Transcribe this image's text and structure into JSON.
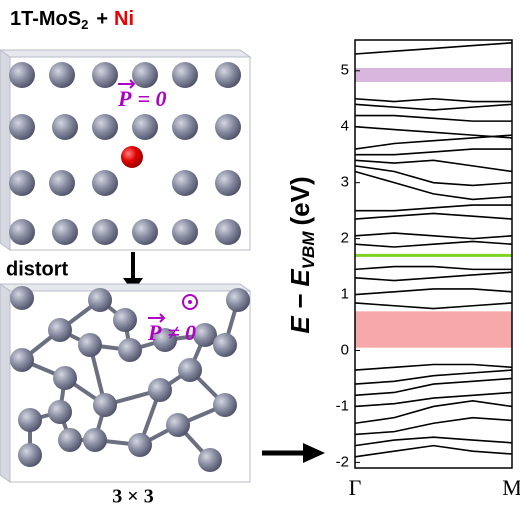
{
  "header": {
    "main": "1T-MoS",
    "sub": "2",
    "plus": "+",
    "element": "Ni"
  },
  "panels": {
    "top_symbol": "P",
    "top_relation": "= 0",
    "arrow_label": "distort",
    "bottom_symbol": "P",
    "bottom_relation": "≠ 0",
    "bottom_caption": "3 × 3"
  },
  "chart_data": {
    "type": "line",
    "ylabel": {
      "main": "E − E",
      "sub": "VBM",
      "unit": "(eV)"
    },
    "x": [
      0,
      0.25,
      0.5,
      0.75,
      1
    ],
    "xlim": [
      0,
      1
    ],
    "xticks": [
      {
        "value": 0,
        "label": "Γ"
      },
      {
        "value": 1,
        "label": "M"
      }
    ],
    "ylim": [
      -2.1,
      5.55
    ],
    "yticks": [
      -2,
      -1,
      0,
      1,
      2,
      3,
      4,
      5
    ],
    "spans": [
      {
        "values": [
          4.8,
          5.05
        ],
        "color": "#d9b6dd"
      },
      {
        "values": [
          0.05,
          0.7
        ],
        "color": "#f7a9a9"
      }
    ],
    "highlight_lines": [
      {
        "value": 1.7,
        "color": "#7ed321"
      }
    ],
    "color": "#000000",
    "series": [
      {
        "values": [
          -1.9,
          -1.8,
          -1.7,
          -1.8,
          -1.85
        ]
      },
      {
        "values": [
          -1.7,
          -1.6,
          -1.55,
          -1.6,
          -1.65
        ]
      },
      {
        "values": [
          -1.5,
          -1.45,
          -1.3,
          -1.2,
          -1.25
        ]
      },
      {
        "values": [
          -1.3,
          -1.2,
          -1.0,
          -0.9,
          -1.0
        ]
      },
      {
        "values": [
          -1.0,
          -0.95,
          -0.85,
          -0.8,
          -0.75
        ]
      },
      {
        "values": [
          -0.8,
          -0.75,
          -0.6,
          -0.55,
          -0.5
        ]
      },
      {
        "values": [
          -0.6,
          -0.55,
          -0.45,
          -0.4,
          -0.35
        ]
      },
      {
        "values": [
          -0.35,
          -0.3,
          -0.25,
          -0.25,
          -0.3
        ]
      },
      {
        "values": [
          0.85,
          0.8,
          0.75,
          0.8,
          0.85
        ]
      },
      {
        "values": [
          1.0,
          1.05,
          1.1,
          1.1,
          1.05
        ]
      },
      {
        "values": [
          1.3,
          1.25,
          1.3,
          1.35,
          1.4
        ]
      },
      {
        "values": [
          1.45,
          1.5,
          1.5,
          1.45,
          1.45
        ]
      },
      {
        "values": [
          1.9,
          1.85,
          1.9,
          1.95,
          1.9
        ]
      },
      {
        "values": [
          2.05,
          2.1,
          2.05,
          2.0,
          2.05
        ]
      },
      {
        "values": [
          2.35,
          2.4,
          2.45,
          2.4,
          2.35
        ]
      },
      {
        "values": [
          2.5,
          2.5,
          2.55,
          2.6,
          2.6
        ]
      },
      {
        "values": [
          3.2,
          3.0,
          2.8,
          2.7,
          2.75
        ]
      },
      {
        "values": [
          3.3,
          3.2,
          3.0,
          2.95,
          3.0
        ]
      },
      {
        "values": [
          3.4,
          3.35,
          3.4,
          3.3,
          3.2
        ]
      },
      {
        "values": [
          3.5,
          3.5,
          3.55,
          3.6,
          3.6
        ]
      },
      {
        "values": [
          3.6,
          3.7,
          3.75,
          3.8,
          3.85
        ]
      },
      {
        "values": [
          4.0,
          3.95,
          3.9,
          3.85,
          3.8
        ]
      },
      {
        "values": [
          4.2,
          4.2,
          4.15,
          4.1,
          4.1
        ]
      },
      {
        "values": [
          4.4,
          4.35,
          4.3,
          4.35,
          4.4
        ]
      },
      {
        "values": [
          4.5,
          4.45,
          4.5,
          4.45,
          4.45
        ]
      },
      {
        "values": [
          5.3,
          5.35,
          5.4,
          5.45,
          5.5
        ]
      }
    ]
  }
}
